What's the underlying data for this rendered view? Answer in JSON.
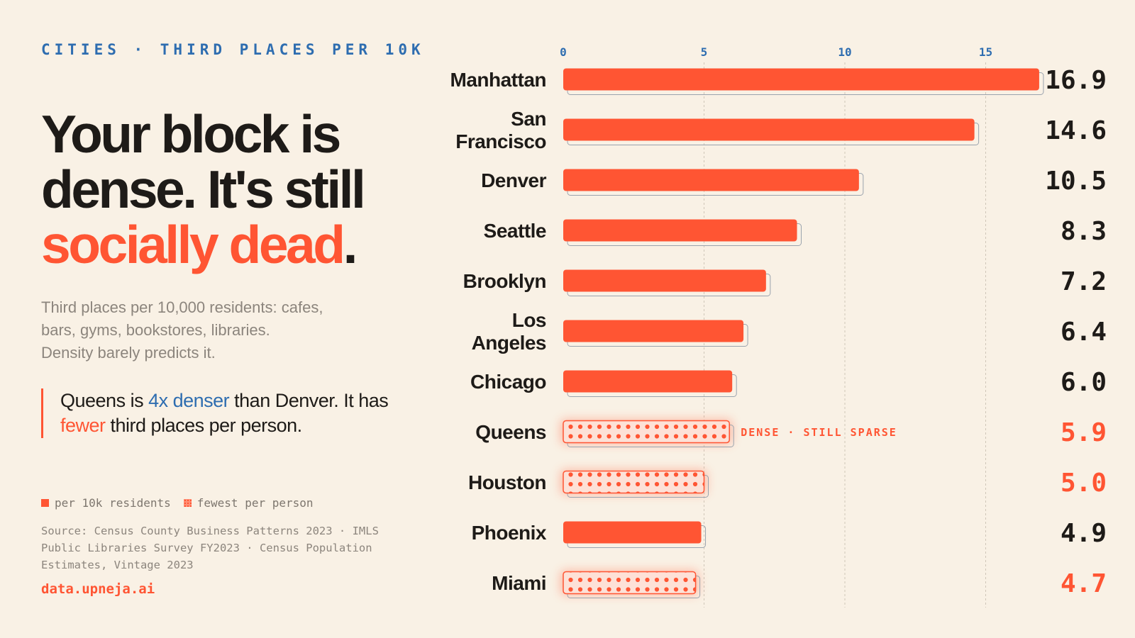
{
  "kicker": "CITIES · THIRD PLACES PER 10K",
  "headline": {
    "line1": "Your block is",
    "line2": "dense. It's still",
    "accent": "socially dead",
    "period": "."
  },
  "subtitle": "Third places per 10,000 residents: cafes, bars, gyms, bookstores, libraries. Density barely predicts it.",
  "callout": {
    "part1": "Queens is ",
    "highlight1": "4x denser",
    "part2": " than Denver. It has ",
    "highlight2": "fewer",
    "part3": " third places per person."
  },
  "legend": {
    "item1": "per 10k residents",
    "item2": "fewest per person"
  },
  "source": "Source: Census County Business Patterns 2023 · IMLS Public Libraries Survey FY2023 · Census Population Estimates, Vintage 2023",
  "credit": "data.upneja.ai",
  "colors": {
    "accent": "#ff5533",
    "blue": "#2e6db0",
    "background": "#f9f1e5",
    "text": "#1e1b18"
  },
  "chart_data": {
    "type": "bar",
    "orientation": "horizontal",
    "xlim": [
      0,
      17
    ],
    "xticks": [
      0,
      5,
      10,
      15
    ],
    "grid": true,
    "annotation": {
      "category": "Queens",
      "text": "DENSE · STILL SPARSE"
    },
    "categories": [
      {
        "name": "Manhattan",
        "lines": [
          "Manhattan"
        ],
        "value": 16.9,
        "label": "16.9",
        "style": "solid"
      },
      {
        "name": "San Francisco",
        "lines": [
          "San",
          "Francisco"
        ],
        "value": 14.6,
        "label": "14.6",
        "style": "solid"
      },
      {
        "name": "Denver",
        "lines": [
          "Denver"
        ],
        "value": 10.5,
        "label": "10.5",
        "style": "solid"
      },
      {
        "name": "Seattle",
        "lines": [
          "Seattle"
        ],
        "value": 8.3,
        "label": "8.3",
        "style": "solid"
      },
      {
        "name": "Brooklyn",
        "lines": [
          "Brooklyn"
        ],
        "value": 7.2,
        "label": "7.2",
        "style": "solid"
      },
      {
        "name": "Los Angeles",
        "lines": [
          "Los",
          "Angeles"
        ],
        "value": 6.4,
        "label": "6.4",
        "style": "solid"
      },
      {
        "name": "Chicago",
        "lines": [
          "Chicago"
        ],
        "value": 6.0,
        "label": "6.0",
        "style": "solid"
      },
      {
        "name": "Queens",
        "lines": [
          "Queens"
        ],
        "value": 5.9,
        "label": "5.9",
        "style": "dotted"
      },
      {
        "name": "Houston",
        "lines": [
          "Houston"
        ],
        "value": 5.0,
        "label": "5.0",
        "style": "dotted"
      },
      {
        "name": "Phoenix",
        "lines": [
          "Phoenix"
        ],
        "value": 4.9,
        "label": "4.9",
        "style": "solid"
      },
      {
        "name": "Miami",
        "lines": [
          "Miami"
        ],
        "value": 4.7,
        "label": "4.7",
        "style": "dotted"
      }
    ]
  }
}
